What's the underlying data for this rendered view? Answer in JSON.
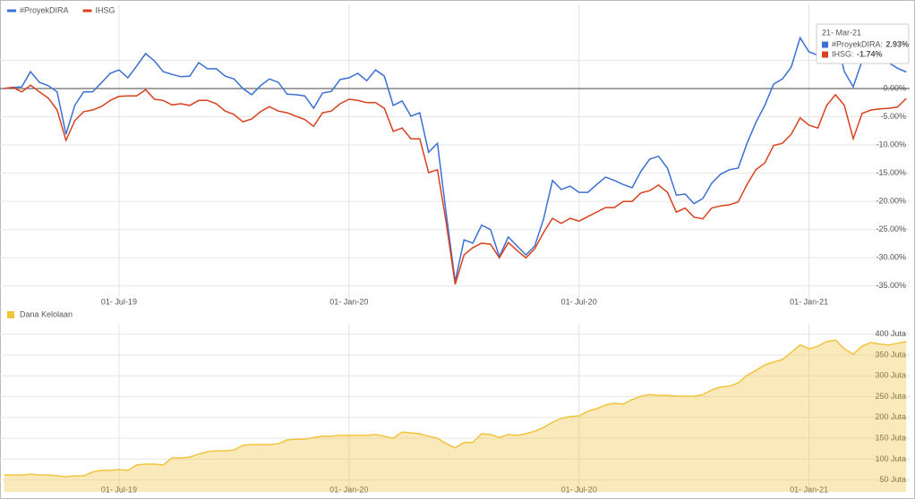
{
  "chart_data": [
    {
      "type": "line",
      "categories": [
        null,
        null,
        null,
        null,
        null,
        null,
        null,
        null,
        null,
        null,
        null,
        null,
        null,
        "01- Jul-19",
        null,
        null,
        null,
        null,
        null,
        null,
        null,
        null,
        null,
        null,
        null,
        null,
        null,
        null,
        null,
        null,
        null,
        null,
        null,
        null,
        null,
        null,
        null,
        null,
        null,
        "01- Jan-20",
        null,
        null,
        null,
        null,
        null,
        null,
        null,
        null,
        null,
        null,
        null,
        null,
        null,
        null,
        null,
        null,
        null,
        null,
        null,
        null,
        null,
        null,
        null,
        null,
        null,
        "01- Jul-20",
        null,
        null,
        null,
        null,
        null,
        null,
        null,
        null,
        null,
        null,
        null,
        null,
        null,
        null,
        null,
        null,
        null,
        null,
        null,
        null,
        null,
        null,
        null,
        null,
        null,
        "01- Jan-21",
        null,
        null,
        null,
        null,
        null,
        null,
        null,
        null,
        null,
        null,
        null
      ],
      "series": [
        {
          "name": "#ProyekDIRA",
          "color": "#3b6fd4",
          "values": [
            0,
            0.2,
            0.3,
            3.0,
            1.1,
            0.5,
            -0.6,
            -8.1,
            -3.0,
            -0.6,
            -0.6,
            1.0,
            2.7,
            3.3,
            1.9,
            4.0,
            6.2,
            4.9,
            3.0,
            2.5,
            2.1,
            2.2,
            4.6,
            3.5,
            3.5,
            2.2,
            1.7,
            0,
            -1.1,
            0.5,
            1.7,
            1.1,
            -1.0,
            -1.1,
            -1.3,
            -3.5,
            -0.8,
            -0.5,
            1.6,
            1.9,
            2.7,
            1.4,
            3.3,
            2.2,
            -3.0,
            -2.2,
            -4.9,
            -4.3,
            -11.3,
            -9.7,
            -22.3,
            -34.2,
            -26.8,
            -27.4,
            -24.2,
            -25.0,
            -29.8,
            -26.3,
            -27.9,
            -29.5,
            -27.9,
            -23.1,
            -16.3,
            -17.9,
            -17.3,
            -18.4,
            -18.4,
            -17.0,
            -15.7,
            -16.3,
            -17.0,
            -17.6,
            -14.7,
            -12.5,
            -12.0,
            -14.1,
            -18.9,
            -18.7,
            -20.4,
            -19.5,
            -16.8,
            -15.2,
            -14.4,
            -14.1,
            -9.7,
            -6.0,
            -3.0,
            0.8,
            1.7,
            3.8,
            9.0,
            6.5,
            5.9,
            10.9,
            9.4,
            3.0,
            0.3,
            4.9,
            6.2,
            5.2,
            4.6,
            3.6,
            2.93
          ]
        },
        {
          "name": "IHSG",
          "color": "#d9401e",
          "values": [
            0,
            0.2,
            -0.6,
            0.6,
            -0.6,
            -1.7,
            -3.8,
            -9.2,
            -5.7,
            -4.1,
            -3.8,
            -3.2,
            -2.1,
            -1.4,
            -1.3,
            -1.3,
            -0.2,
            -1.9,
            -2.1,
            -2.9,
            -2.7,
            -3.0,
            -2.1,
            -2.1,
            -2.7,
            -4.0,
            -4.6,
            -5.9,
            -5.4,
            -4.1,
            -3.2,
            -4.0,
            -4.3,
            -4.9,
            -5.5,
            -6.7,
            -4.3,
            -4.0,
            -2.7,
            -1.9,
            -2.1,
            -2.5,
            -2.5,
            -3.5,
            -7.6,
            -7.0,
            -8.9,
            -8.9,
            -14.9,
            -14.4,
            -23.9,
            -34.7,
            -29.5,
            -28.2,
            -27.4,
            -27.6,
            -30.0,
            -27.3,
            -28.7,
            -30.0,
            -28.4,
            -25.5,
            -23.0,
            -23.9,
            -23.0,
            -23.5,
            -22.7,
            -21.9,
            -21.1,
            -21.1,
            -20.0,
            -20.0,
            -18.5,
            -18.1,
            -17.1,
            -18.4,
            -21.9,
            -21.2,
            -22.8,
            -23.1,
            -21.2,
            -20.8,
            -20.6,
            -20.1,
            -17.0,
            -14.4,
            -13.2,
            -10.1,
            -9.7,
            -8.1,
            -5.2,
            -6.5,
            -7.0,
            -3.0,
            -1.1,
            -3.0,
            -8.9,
            -4.4,
            -3.8,
            -3.6,
            -3.5,
            -3.3,
            -1.74
          ]
        }
      ],
      "ylim": [
        -38.2,
        14.9
      ],
      "yticks": [
        {
          "value": 5,
          "label": "5.00%"
        },
        {
          "value": 0,
          "label": "0.00%"
        },
        {
          "value": -5,
          "label": "-5.00%"
        },
        {
          "value": -10,
          "label": "-10.00%"
        },
        {
          "value": -15,
          "label": "-15.00%"
        },
        {
          "value": -20,
          "label": "-20.00%"
        },
        {
          "value": -25,
          "label": "-25.00%"
        },
        {
          "value": -30,
          "label": "-30.00%"
        },
        {
          "value": -35,
          "label": "-35.00%"
        }
      ],
      "grid": true,
      "legend": "top-left",
      "tooltip": {
        "title": "21- Mar-21",
        "values": [
          2.93,
          -1.74
        ],
        "value_labels": [
          "2.93%",
          "-1.74%"
        ]
      }
    },
    {
      "type": "area",
      "categories": [
        null,
        null,
        null,
        null,
        null,
        null,
        null,
        null,
        null,
        null,
        null,
        null,
        null,
        "01- Jul-19",
        null,
        null,
        null,
        null,
        null,
        null,
        null,
        null,
        null,
        null,
        null,
        null,
        null,
        null,
        null,
        null,
        null,
        null,
        null,
        null,
        null,
        null,
        null,
        null,
        null,
        "01- Jan-20",
        null,
        null,
        null,
        null,
        null,
        null,
        null,
        null,
        null,
        null,
        null,
        null,
        null,
        null,
        null,
        null,
        null,
        null,
        null,
        null,
        null,
        null,
        null,
        null,
        null,
        "01- Jul-20",
        null,
        null,
        null,
        null,
        null,
        null,
        null,
        null,
        null,
        null,
        null,
        null,
        null,
        null,
        null,
        null,
        null,
        null,
        null,
        null,
        null,
        null,
        null,
        null,
        null,
        "01- Jan-21",
        null,
        null,
        null,
        null,
        null,
        null,
        null,
        null,
        null,
        null,
        null
      ],
      "series": [
        {
          "name": "Dana Kelolaan",
          "color": "#f2c33d",
          "values": [
            62,
            62,
            62,
            64,
            62,
            62,
            60,
            58,
            60,
            60,
            69,
            73,
            73,
            75,
            73,
            86,
            88,
            88,
            86,
            103,
            103,
            105,
            112,
            118,
            120,
            120,
            122,
            133,
            135,
            135,
            135,
            137,
            146,
            148,
            148,
            152,
            155,
            155,
            157,
            157,
            157,
            157,
            159,
            155,
            150,
            165,
            163,
            161,
            155,
            150,
            137,
            127,
            140,
            140,
            161,
            159,
            152,
            159,
            157,
            161,
            167,
            176,
            189,
            198,
            202,
            204,
            215,
            221,
            230,
            234,
            232,
            243,
            251,
            255,
            253,
            253,
            251,
            251,
            251,
            255,
            266,
            273,
            275,
            283,
            301,
            313,
            326,
            333,
            339,
            356,
            374,
            365,
            371,
            382,
            386,
            365,
            352,
            371,
            380,
            376,
            374,
            378,
            382
          ]
        }
      ],
      "ylim": [
        21.5,
        425
      ],
      "yticks": [
        {
          "value": 400,
          "label": "400 Juta"
        },
        {
          "value": 350,
          "label": "350 Juta"
        },
        {
          "value": 300,
          "label": "300 Juta"
        },
        {
          "value": 250,
          "label": "250 Juta"
        },
        {
          "value": 200,
          "label": "200 Juta"
        },
        {
          "value": 150,
          "label": "150 Juta"
        },
        {
          "value": 100,
          "label": "100 Juta"
        },
        {
          "value": 50,
          "label": "50 Juta"
        }
      ],
      "grid": true,
      "legend": "top-left"
    }
  ]
}
